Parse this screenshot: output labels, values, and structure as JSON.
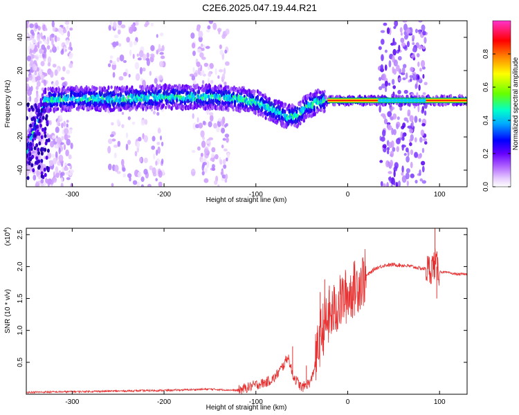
{
  "title": "C2E6.2025.047.19.44.R21",
  "chart_data": [
    {
      "type": "heatmap",
      "xlabel": "Height of straight line (km)",
      "ylabel": "Frequency (Hz)",
      "xlim": [
        -350,
        130
      ],
      "ylim": [
        -50,
        50
      ],
      "x_ticks": [
        -300,
        -200,
        -100,
        0,
        100
      ],
      "y_ticks": [
        -40,
        -20,
        0,
        20,
        40
      ],
      "colorbar": {
        "label": "Normalized spectral amplitude",
        "ticks": [
          "0.0",
          "0.2",
          "0.4",
          "0.6",
          "0.8"
        ],
        "range": [
          0,
          1
        ],
        "colors": [
          "#ffffff",
          "#e6ccff",
          "#b266ff",
          "#6600ff",
          "#0000ff",
          "#00aaff",
          "#00ffcc",
          "#66ff00",
          "#ffff00",
          "#ff8800",
          "#ff0000",
          "#ff33cc"
        ]
      },
      "ridge": {
        "x": [
          -350,
          -330,
          -300,
          -250,
          -200,
          -150,
          -120,
          -100,
          -80,
          -65,
          -55,
          -45,
          -35,
          -20,
          0,
          50,
          130
        ],
        "y": [
          -30,
          2,
          3,
          3,
          4,
          4,
          3,
          1,
          -4,
          -8,
          -7,
          -2,
          1,
          2,
          2,
          2,
          2
        ]
      },
      "noise_bands": [
        [
          -350,
          -330
        ],
        [
          -330,
          -300
        ],
        [
          -260,
          -200
        ],
        [
          -170,
          -130
        ],
        [
          35,
          85
        ]
      ]
    },
    {
      "type": "line",
      "xlabel": "Height of straight line (km)",
      "ylabel": "SNR (10 * v/v)",
      "yscale_label": "(x10",
      "yscale_exp": "4",
      "xlim": [
        -350,
        130
      ],
      "ylim": [
        0,
        2.6
      ],
      "x_ticks": [
        -300,
        -200,
        -100,
        0,
        100
      ],
      "y_ticks": [
        "0.5",
        "1.0",
        "1.5",
        "2.0",
        "2.5"
      ],
      "line_color": "#e83030",
      "series": [
        {
          "x": [
            -350,
            -300,
            -250,
            -200,
            -150,
            -120,
            -110,
            -100,
            -90,
            -80,
            -70,
            -65,
            -60,
            -55,
            -50,
            -45,
            -40,
            -35,
            -30,
            -25,
            -20,
            -15,
            -10,
            -5,
            0,
            10,
            20,
            30,
            40,
            50,
            60,
            70,
            80,
            90,
            95,
            100,
            110,
            120,
            130
          ],
          "y": [
            0.03,
            0.04,
            0.05,
            0.06,
            0.08,
            0.06,
            0.1,
            0.15,
            0.18,
            0.25,
            0.45,
            0.6,
            0.3,
            0.2,
            0.1,
            0.15,
            0.2,
            0.5,
            0.9,
            1.1,
            1.2,
            1.3,
            1.4,
            1.5,
            1.55,
            1.7,
            1.85,
            1.97,
            2.02,
            2.03,
            2.02,
            2.0,
            1.97,
            1.96,
            2.05,
            1.92,
            1.9,
            1.88,
            1.88
          ],
          "spikes": [
            {
              "x": -60,
              "y": 0.75
            },
            {
              "x": -45,
              "y": 0.45
            },
            {
              "x": -30,
              "y": 1.6
            },
            {
              "x": -25,
              "y": 1.8
            },
            {
              "x": -20,
              "y": 1.7
            },
            {
              "x": -10,
              "y": 1.55
            },
            {
              "x": 95,
              "y": 2.6
            },
            {
              "x": 97,
              "y": 1.5
            }
          ]
        }
      ]
    }
  ]
}
